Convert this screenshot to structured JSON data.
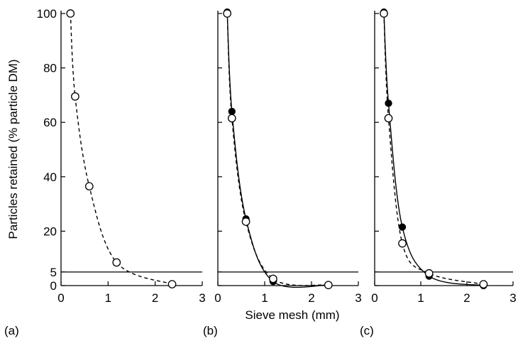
{
  "figure": {
    "ylabel": "Particles retained (% particle DM)",
    "xlabel": "Sieve mesh (mm)"
  },
  "chart_data": [
    {
      "type": "scatter",
      "panel_label": "(a)",
      "xlim": [
        0,
        3
      ],
      "ylim": [
        0,
        100
      ],
      "xticks": [
        0,
        1,
        2,
        3
      ],
      "yticks": [
        0,
        5,
        20,
        40,
        60,
        80,
        100
      ],
      "ytick_labels": [
        "0",
        "5",
        "20",
        "40",
        "60",
        "80",
        "100"
      ],
      "reference_line_y": 5,
      "series": [
        {
          "marker": "open-circle",
          "line": "dashed",
          "x": [
            0.2,
            0.3,
            0.6,
            1.18,
            2.36
          ],
          "y": [
            100,
            69.5,
            36.5,
            8.5,
            0.5
          ]
        }
      ]
    },
    {
      "type": "scatter",
      "panel_label": "(b)",
      "xlim": [
        0,
        3
      ],
      "ylim": [
        0,
        100
      ],
      "xticks": [
        0,
        1,
        2,
        3
      ],
      "yticks": [
        0,
        5,
        20,
        40,
        60,
        80,
        100
      ],
      "ytick_labels": [],
      "reference_line_y": 5,
      "series": [
        {
          "marker": "filled-circle",
          "line": "solid",
          "x": [
            0.2,
            0.3,
            0.6,
            1.18,
            2.36
          ],
          "y": [
            100.5,
            64,
            24.5,
            1.5,
            0.2
          ]
        },
        {
          "marker": "open-circle",
          "line": "dashed",
          "x": [
            0.2,
            0.3,
            0.6,
            1.18,
            2.36
          ],
          "y": [
            100,
            61.5,
            23.5,
            2.5,
            0.2
          ]
        }
      ]
    },
    {
      "type": "scatter",
      "panel_label": "(c)",
      "xlim": [
        0,
        3
      ],
      "ylim": [
        0,
        100
      ],
      "xticks": [
        0,
        1,
        2,
        3
      ],
      "yticks": [
        0,
        5,
        20,
        40,
        60,
        80,
        100
      ],
      "ytick_labels": [],
      "reference_line_y": 5,
      "series": [
        {
          "marker": "filled-circle",
          "line": "solid",
          "x": [
            0.2,
            0.3,
            0.6,
            1.18,
            2.36
          ],
          "y": [
            100.5,
            67,
            21.5,
            3.5,
            0
          ]
        },
        {
          "marker": "open-circle",
          "line": "dashed",
          "x": [
            0.2,
            0.3,
            0.6,
            1.18,
            2.36
          ],
          "y": [
            100,
            61.5,
            15.5,
            4.5,
            0.5
          ]
        }
      ]
    }
  ]
}
